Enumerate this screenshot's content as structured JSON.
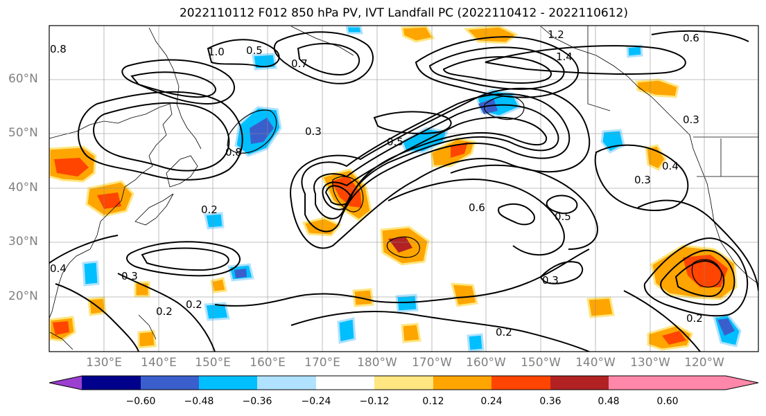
{
  "title": "2022110112 F012 850 hPa PV, IVT Landfall PC (2022110412 - 2022110612)",
  "lat_labels": [
    "60°N",
    "50°N",
    "40°N",
    "30°N",
    "20°N"
  ],
  "lon_labels": [
    "130°E",
    "140°E",
    "150°E",
    "160°E",
    "170°E",
    "180°W",
    "170°W",
    "160°W",
    "150°W",
    "140°W",
    "130°W",
    "120°W"
  ],
  "colorbar": {
    "ticks": [
      "−0.60",
      "−0.48",
      "−0.36",
      "−0.24",
      "−0.12",
      "0.12",
      "0.24",
      "0.36",
      "0.48",
      "0.60"
    ],
    "colors": [
      "#9b3fd0",
      "#00008b",
      "#3a5fcd",
      "#00bfff",
      "#b0e2ff",
      "#ffffff",
      "#ffe680",
      "#ffa500",
      "#ff4500",
      "#b22222",
      "#ff88aa"
    ]
  },
  "contour_labels": [
    "0.8",
    "0.5",
    "1.0",
    "1.2",
    "1.4",
    "0.7",
    "0.6",
    "0.3",
    "0.4",
    "0.2",
    "0.8",
    "0.3",
    "0.5",
    "0.6",
    "0.5",
    "0.3",
    "0.4",
    "0.3",
    "0.2",
    "0.2",
    "0.3",
    "0.2",
    "0.2"
  ]
}
